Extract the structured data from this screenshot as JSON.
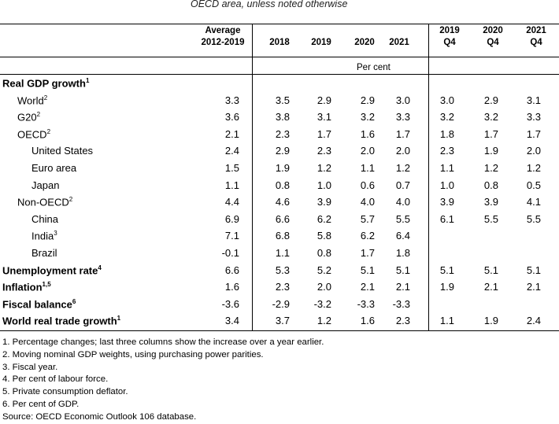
{
  "subtitle": "OECD area, unless noted otherwise",
  "headers": [
    {
      "line1": "Average",
      "line2": "2012-2019"
    },
    {
      "line1": "",
      "line2": "2018"
    },
    {
      "line1": "",
      "line2": "2019"
    },
    {
      "line1": "",
      "line2": "2020"
    },
    {
      "line1": "",
      "line2": "2021"
    },
    {
      "line1": "2019",
      "line2": "Q4"
    },
    {
      "line1": "2020",
      "line2": "Q4"
    },
    {
      "line1": "2021",
      "line2": "Q4"
    }
  ],
  "unit_label": "Per cent",
  "rows": [
    {
      "label": "Real GDP growth",
      "sup": "1",
      "bold": true,
      "indent": 0,
      "values": [
        "",
        "",
        "",
        "",
        "",
        "",
        "",
        ""
      ]
    },
    {
      "label": "World",
      "sup": "2",
      "bold": false,
      "indent": 1,
      "values": [
        "3.3",
        "3.5",
        "2.9",
        "2.9",
        "3.0",
        "3.0",
        "2.9",
        "3.1"
      ]
    },
    {
      "label": "G20",
      "sup": "2",
      "bold": false,
      "indent": 1,
      "values": [
        "3.6",
        "3.8",
        "3.1",
        "3.2",
        "3.3",
        "3.2",
        "3.2",
        "3.3"
      ]
    },
    {
      "label": "OECD",
      "sup": "2",
      "bold": false,
      "indent": 1,
      "values": [
        "2.1",
        "2.3",
        "1.7",
        "1.6",
        "1.7",
        "1.8",
        "1.7",
        "1.7"
      ]
    },
    {
      "label": "United States",
      "sup": "",
      "bold": false,
      "indent": 2,
      "values": [
        "2.4",
        "2.9",
        "2.3",
        "2.0",
        "2.0",
        "2.3",
        "1.9",
        "2.0"
      ]
    },
    {
      "label": "Euro area",
      "sup": "",
      "bold": false,
      "indent": 2,
      "values": [
        "1.5",
        "1.9",
        "1.2",
        "1.1",
        "1.2",
        "1.1",
        "1.2",
        "1.2"
      ]
    },
    {
      "label": "Japan",
      "sup": "",
      "bold": false,
      "indent": 2,
      "values": [
        "1.1",
        "0.8",
        "1.0",
        "0.6",
        "0.7",
        "1.0",
        "0.8",
        "0.5"
      ]
    },
    {
      "label": "Non-OECD",
      "sup": "2",
      "bold": false,
      "indent": 1,
      "values": [
        "4.4",
        "4.6",
        "3.9",
        "4.0",
        "4.0",
        "3.9",
        "3.9",
        "4.1"
      ]
    },
    {
      "label": "China",
      "sup": "",
      "bold": false,
      "indent": 2,
      "values": [
        "6.9",
        "6.6",
        "6.2",
        "5.7",
        "5.5",
        "6.1",
        "5.5",
        "5.5"
      ]
    },
    {
      "label": "India",
      "sup": "3",
      "bold": false,
      "indent": 2,
      "values": [
        "7.1",
        "6.8",
        "5.8",
        "6.2",
        "6.4",
        "",
        "",
        ""
      ]
    },
    {
      "label": "Brazil",
      "sup": "",
      "bold": false,
      "indent": 2,
      "values": [
        "-0.1",
        "1.1",
        "0.8",
        "1.7",
        "1.8",
        "",
        "",
        ""
      ]
    },
    {
      "label": "Unemployment rate",
      "sup": "4",
      "bold": true,
      "indent": 0,
      "values": [
        "6.6",
        "5.3",
        "5.2",
        "5.1",
        "5.1",
        "5.1",
        "5.1",
        "5.1"
      ]
    },
    {
      "label": "Inflation",
      "sup": "1,5",
      "bold": true,
      "indent": 0,
      "values": [
        "1.6",
        "2.3",
        "2.0",
        "2.1",
        "2.1",
        "1.9",
        "2.1",
        "2.1"
      ]
    },
    {
      "label": "Fiscal balance",
      "sup": "6",
      "bold": true,
      "indent": 0,
      "values": [
        "-3.6",
        "-2.9",
        "-3.2",
        "-3.3",
        "-3.3",
        "",
        "",
        ""
      ]
    },
    {
      "label": "World real trade growth",
      "sup": "1",
      "bold": true,
      "indent": 0,
      "values": [
        "3.4",
        "3.7",
        "1.2",
        "1.6",
        "2.3",
        "1.1",
        "1.9",
        "2.4"
      ]
    }
  ],
  "notes": [
    "1.  Percentage changes; last three columns show the increase over a year earlier.",
    "2.  Moving nominal GDP weights, using purchasing power parities.",
    "3.  Fiscal year.",
    "4.  Per cent of labour force.",
    "5.  Private consumption deflator.",
    "6.  Per cent of GDP.",
    "Source: OECD Economic Outlook 106 database."
  ]
}
